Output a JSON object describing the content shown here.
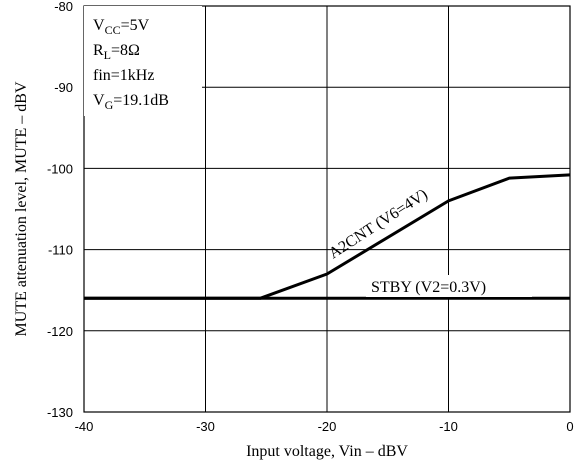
{
  "chart_data": {
    "type": "line",
    "title": "",
    "xlabel": "Input voltage, Vin – dBV",
    "ylabel": "MUTE attenuation level, MUTE – dBV",
    "xlim": [
      -40,
      0
    ],
    "ylim": [
      -130,
      -80
    ],
    "x_ticks": [
      "-40",
      "-30",
      "-20",
      "-10",
      "0"
    ],
    "y_ticks": [
      "-80",
      "-90",
      "-100",
      "-110",
      "-120",
      "-130"
    ],
    "grid": true,
    "conditions": {
      "vcc": "V<sub>CC</sub>=5V",
      "rl": "R<sub>L</sub>=8Ω",
      "fin": "fin=1kHz",
      "vg": "V<sub>G</sub>=19.1dB"
    },
    "series": [
      {
        "name": "A2CNT (V6=4V)",
        "x": [
          -40,
          -25.5,
          -20,
          -10,
          -5,
          0
        ],
        "y": [
          -116,
          -116,
          -113,
          -104,
          -101.2,
          -100.8
        ]
      },
      {
        "name": "STBY (V2=0.3V)",
        "x": [
          -40,
          0
        ],
        "y": [
          -116,
          -116
        ]
      }
    ]
  }
}
